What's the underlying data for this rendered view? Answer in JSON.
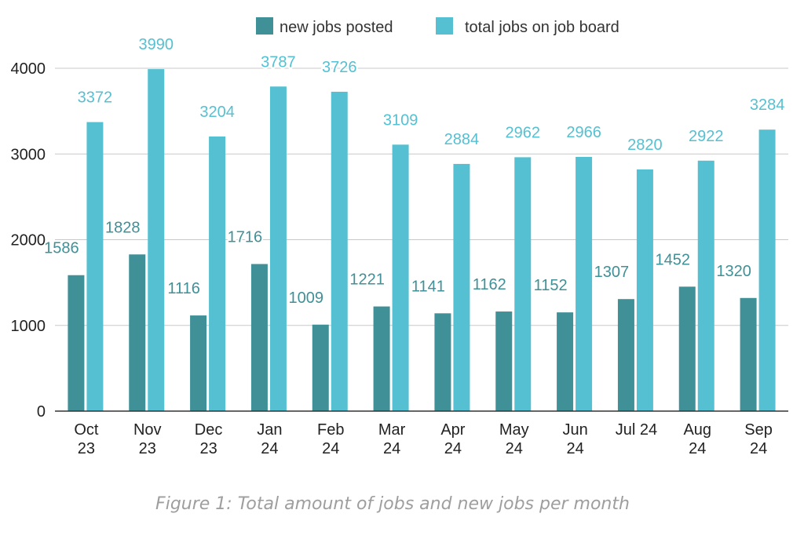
{
  "chart_data": {
    "type": "bar",
    "categories": [
      [
        "Oct",
        "23"
      ],
      [
        "Nov",
        "23"
      ],
      [
        "Dec",
        "23"
      ],
      [
        "Jan",
        "24"
      ],
      [
        "Feb",
        "24"
      ],
      [
        "Mar",
        "24"
      ],
      [
        "Apr",
        "24"
      ],
      [
        "May",
        "24"
      ],
      [
        "Jun",
        "24"
      ],
      [
        "Jul 24"
      ],
      [
        "Aug",
        "24"
      ],
      [
        "Sep",
        "24"
      ]
    ],
    "series": [
      {
        "name": "new jobs posted",
        "color": "#3f9097",
        "label_color": "#3f9097",
        "values": [
          1586,
          1828,
          1116,
          1716,
          1009,
          1221,
          1141,
          1162,
          1152,
          1307,
          1452,
          1320
        ]
      },
      {
        "name": "total jobs on job board",
        "color": "#55c0d1",
        "label_color": "#55c0d1",
        "values": [
          3372,
          3990,
          3204,
          3787,
          3726,
          3109,
          2884,
          2962,
          2966,
          2820,
          2922,
          3284
        ]
      }
    ],
    "ylim": [
      0,
      4000
    ],
    "yticks": [
      "0",
      "1000",
      "2000",
      "3000",
      "4000"
    ],
    "grid": true,
    "legend": "top-center",
    "data_labels": true
  },
  "caption": "Figure 1: Total amount of jobs and new jobs per month"
}
